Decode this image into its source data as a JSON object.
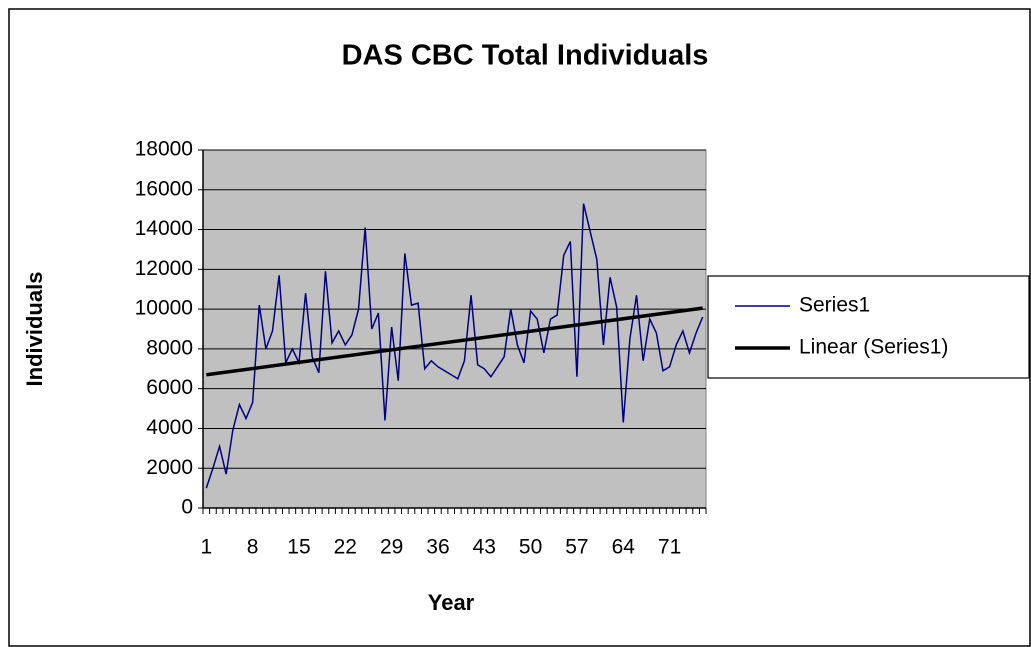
{
  "chart_data": {
    "type": "line",
    "title": "DAS CBC Total Individuals",
    "x_label": "Year",
    "y_label": "Individuals",
    "categories": [
      "1",
      null,
      null,
      null,
      null,
      null,
      null,
      "8",
      null,
      null,
      null,
      null,
      null,
      null,
      "15",
      null,
      null,
      null,
      null,
      null,
      null,
      "22",
      null,
      null,
      null,
      null,
      null,
      null,
      "29",
      null,
      null,
      null,
      null,
      null,
      null,
      "36",
      null,
      null,
      null,
      null,
      null,
      null,
      "43",
      null,
      null,
      null,
      null,
      null,
      null,
      "50",
      null,
      null,
      null,
      null,
      null,
      null,
      "57",
      null,
      null,
      null,
      null,
      null,
      null,
      "64",
      null,
      null,
      null,
      null,
      null,
      null,
      "71",
      null,
      null,
      null,
      null,
      null
    ],
    "series": [
      {
        "name": "Series1",
        "color": "#000080",
        "values": [
          1000,
          2000,
          3100,
          1700,
          3900,
          5200,
          4500,
          5300,
          10200,
          8000,
          8900,
          11700,
          7300,
          8000,
          7300,
          10800,
          7600,
          6800,
          11900,
          8300,
          8900,
          8200,
          8700,
          10000,
          14100,
          9000,
          9800,
          4400,
          9100,
          6400,
          12800,
          10200,
          10300,
          7000,
          7400,
          7100,
          6900,
          6700,
          6500,
          7400,
          10700,
          7200,
          7000,
          6600,
          7100,
          7600,
          10000,
          8200,
          7300,
          9900,
          9500,
          7800,
          9500,
          9700,
          12700,
          13400,
          6600,
          15300,
          13900,
          12500,
          8200,
          11600,
          10100,
          4300,
          8500,
          10700,
          7400,
          9500,
          8800,
          6900,
          7100,
          8200,
          8900,
          7800,
          8800,
          9600
        ]
      }
    ],
    "trendline": {
      "name": "Linear (Series1)",
      "color": "#000000",
      "values": [
        6700,
        10050
      ]
    },
    "ylim": [
      0,
      18000
    ],
    "yticks": [
      0,
      2000,
      4000,
      6000,
      8000,
      10000,
      12000,
      14000,
      16000,
      18000
    ],
    "grid": true,
    "plot_background": "#c0c0c0",
    "legend": "right"
  }
}
